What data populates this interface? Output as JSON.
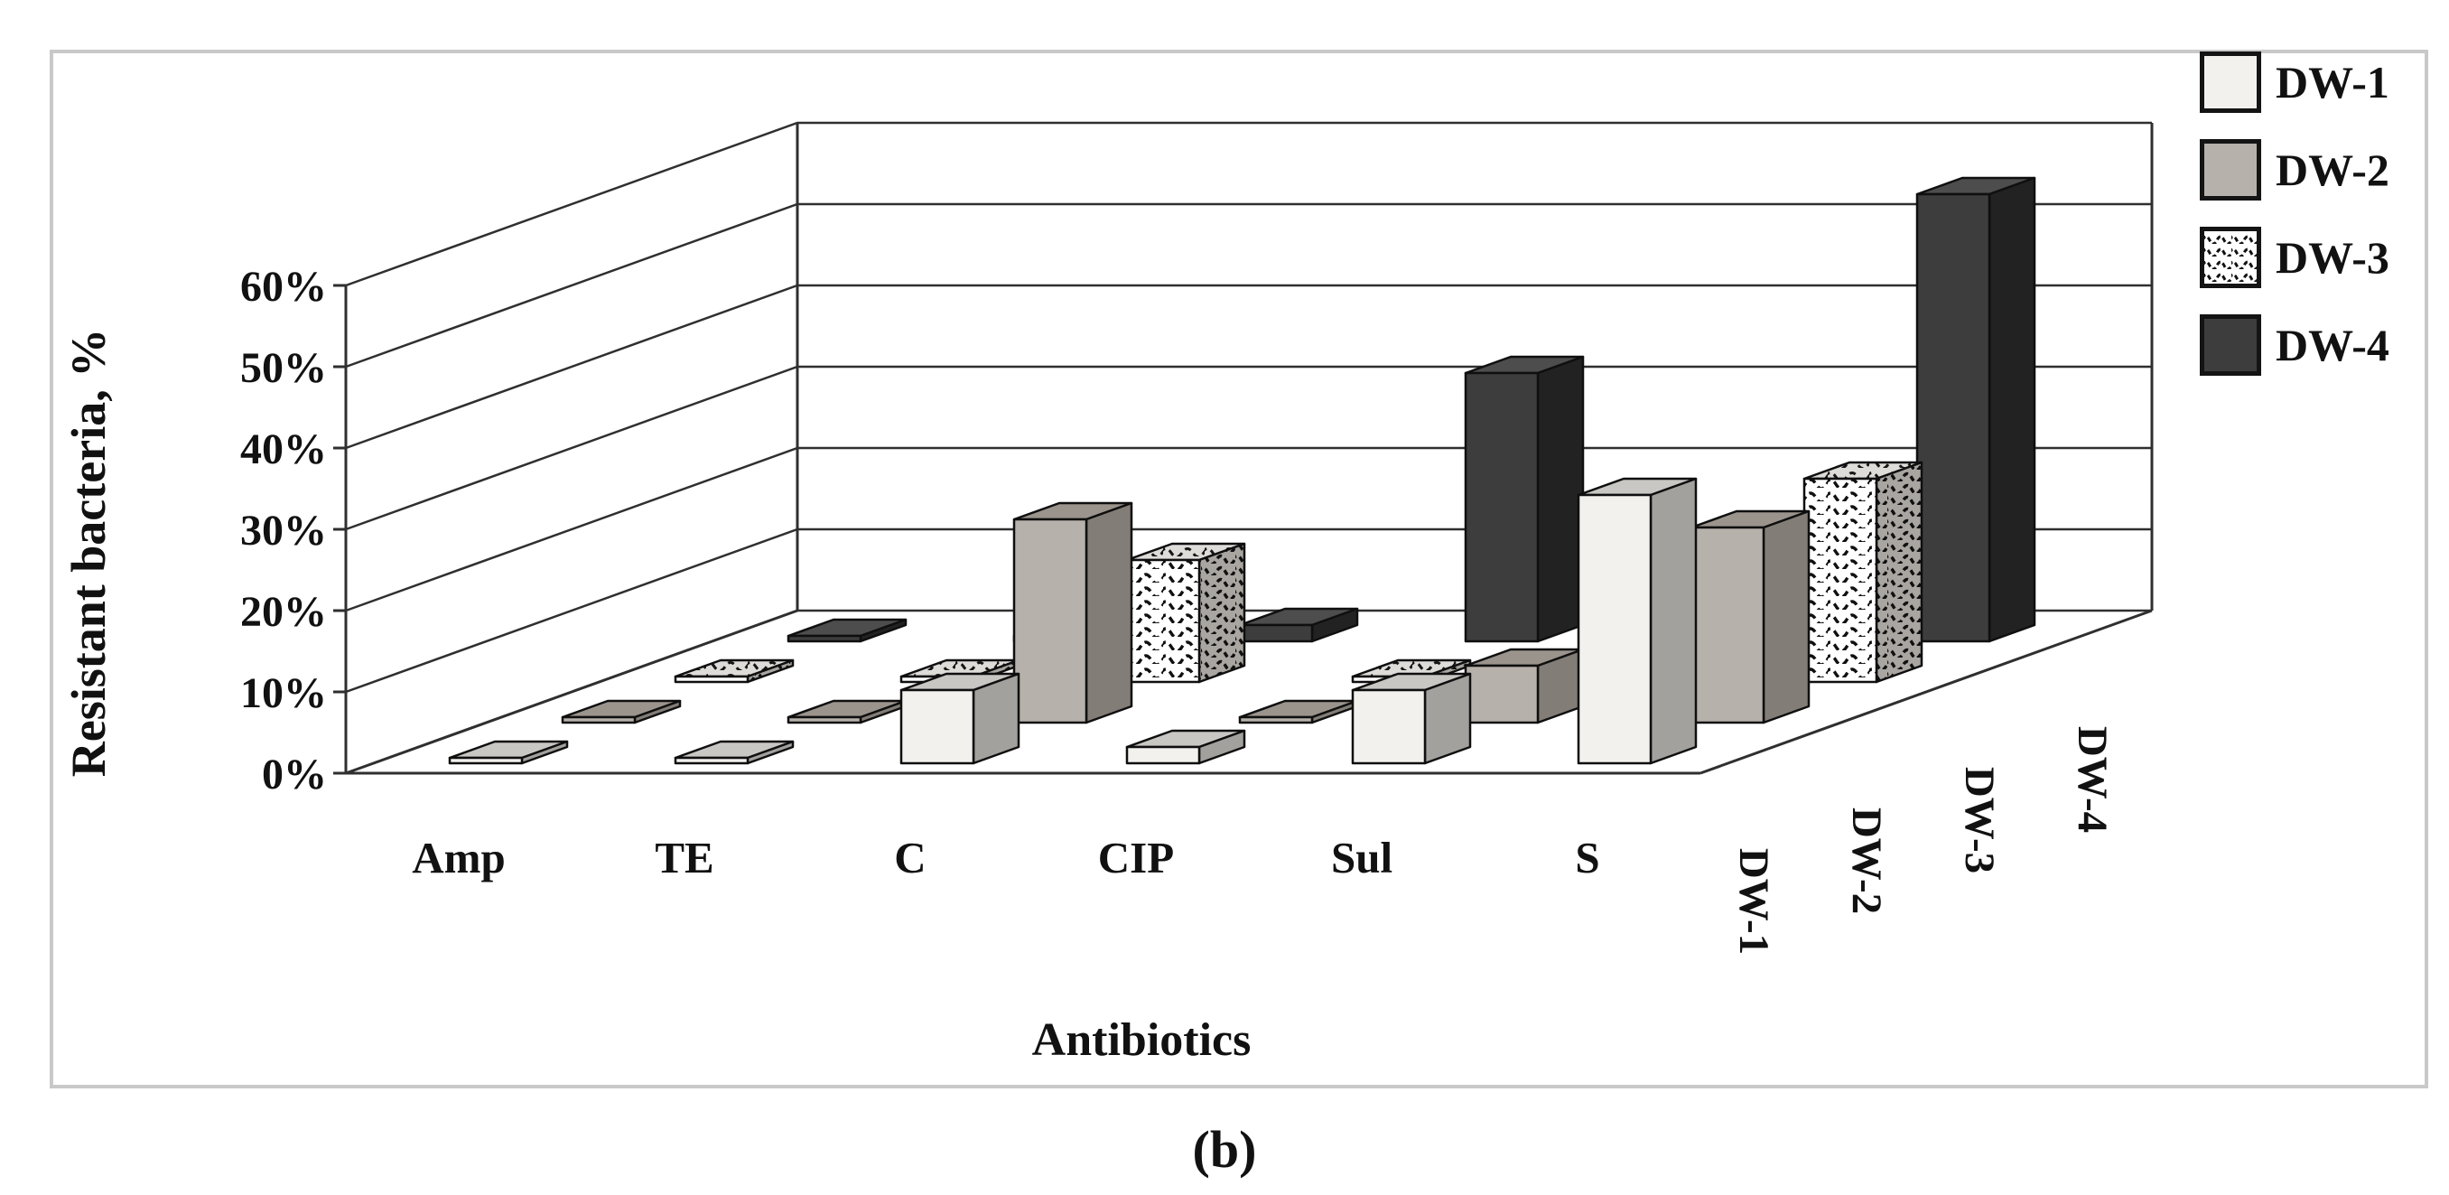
{
  "figure": {
    "panel_label": "(b)",
    "frame_color": "#c9c9c9",
    "background": "#ffffff"
  },
  "chart_data": {
    "type": "bar",
    "projection": "3d",
    "title": "",
    "xlabel": "Antibiotics",
    "ylabel": "Resistant bacteria, %",
    "categories": [
      "Amp",
      "TE",
      "C",
      "CIP",
      "Sul",
      "S"
    ],
    "series_axis_labels": [
      "DW-1",
      "DW-2",
      "DW-3",
      "DW-4"
    ],
    "y_ticks": [
      "0%",
      "10%",
      "20%",
      "30%",
      "40%",
      "50%",
      "60%"
    ],
    "ylim": [
      0,
      60
    ],
    "grid": true,
    "legend_position": "top-right",
    "series": [
      {
        "name": "DW-1",
        "pattern": "solid",
        "values": [
          0,
          0,
          9,
          2,
          9,
          33
        ],
        "colors": {
          "front": "#f2f1ee",
          "top": "#c9c7c4",
          "side": "#a3a19e"
        }
      },
      {
        "name": "DW-2",
        "pattern": "solid",
        "values": [
          0,
          0,
          25,
          0,
          7,
          24
        ],
        "colors": {
          "front": "#b7b1ab",
          "top": "#9b948d",
          "side": "#837d77"
        }
      },
      {
        "name": "DW-3",
        "pattern": "wave",
        "values": [
          0,
          0,
          15,
          0,
          0,
          25
        ],
        "colors": {
          "front": "#ffffff",
          "top": "#dedcd9",
          "side": "#a9a5a1"
        }
      },
      {
        "name": "DW-4",
        "pattern": "solid",
        "values": [
          0,
          0,
          2,
          33,
          0,
          55
        ],
        "colors": {
          "front": "#3e3d3d",
          "top": "#4e4d4d",
          "side": "#232222"
        }
      }
    ]
  }
}
